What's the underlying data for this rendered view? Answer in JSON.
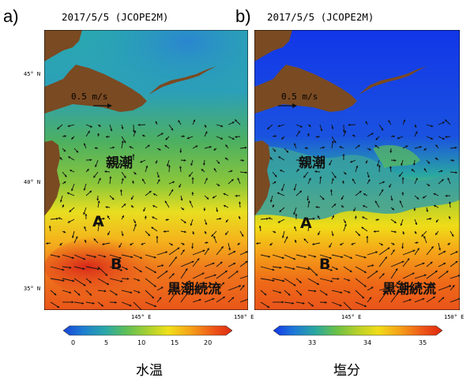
{
  "panels": [
    {
      "letter": "a)",
      "date": "2017/5/5 (JCOPE2M)",
      "variable": "水温",
      "lat_labels": [
        "45° N",
        "40° N",
        "35° N"
      ],
      "lon_labels": [
        "145° E",
        "150° E"
      ],
      "scale_label": "0.5 m/s",
      "current_labels": [
        "親潮",
        "A",
        "B",
        "黒潮続流"
      ],
      "colorbar": {
        "ticks": [
          "0",
          "5",
          "10",
          "15",
          "20"
        ],
        "range": [
          -2,
          23
        ],
        "colors": [
          "#1844d8",
          "#1e7ed0",
          "#2aa8a8",
          "#5cbf58",
          "#a8d030",
          "#f0e018",
          "#f5a418",
          "#ef5a18",
          "#e02a12"
        ]
      }
    },
    {
      "letter": "b)",
      "date": "2017/5/5 (JCOPE2M)",
      "variable": "塩分",
      "lat_labels": [],
      "lon_labels": [
        "145° E",
        "150° E"
      ],
      "scale_label": "0.5 m/s",
      "current_labels": [
        "親潮",
        "A",
        "B",
        "黒潮続流"
      ],
      "colorbar": {
        "ticks": [
          "33",
          "34",
          "35"
        ],
        "range": [
          32.3,
          35.3
        ],
        "colors": [
          "#1236e8",
          "#1e78d8",
          "#2aa8a0",
          "#68c048",
          "#b8d028",
          "#f0dc18",
          "#f5a018",
          "#ee5818",
          "#e0260e"
        ]
      }
    }
  ],
  "colors": {
    "land": "#7a4a22",
    "arrow": "#111111"
  }
}
